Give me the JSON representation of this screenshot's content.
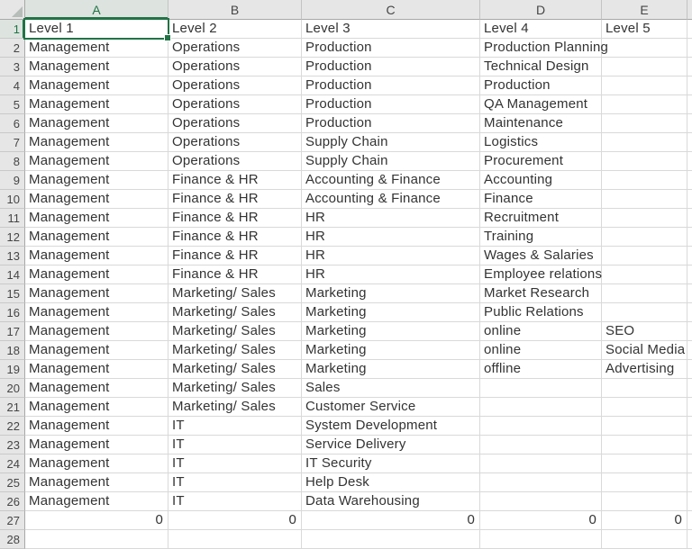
{
  "sheet": {
    "columns": [
      "A",
      "B",
      "C",
      "D",
      "E"
    ],
    "selection": {
      "cell": "A1",
      "column": "A",
      "row": "1",
      "value": "Level 1"
    },
    "accent_color": "#217346",
    "rows": [
      {
        "n": "1",
        "cells": [
          "Level 1",
          "Level 2",
          "Level 3",
          "Level 4",
          "Level 5"
        ]
      },
      {
        "n": "2",
        "cells": [
          "Management",
          "Operations",
          "Production",
          "Production Planning",
          ""
        ]
      },
      {
        "n": "3",
        "cells": [
          "Management",
          "Operations",
          "Production",
          "Technical Design",
          ""
        ]
      },
      {
        "n": "4",
        "cells": [
          "Management",
          "Operations",
          "Production",
          "Production",
          ""
        ]
      },
      {
        "n": "5",
        "cells": [
          "Management",
          "Operations",
          "Production",
          "QA Management",
          ""
        ]
      },
      {
        "n": "6",
        "cells": [
          "Management",
          "Operations",
          "Production",
          "Maintenance",
          ""
        ]
      },
      {
        "n": "7",
        "cells": [
          "Management",
          "Operations",
          "Supply Chain",
          "Logistics",
          ""
        ]
      },
      {
        "n": "8",
        "cells": [
          "Management",
          "Operations",
          "Supply Chain",
          "Procurement",
          ""
        ]
      },
      {
        "n": "9",
        "cells": [
          "Management",
          "Finance & HR",
          "Accounting & Finance",
          "Accounting",
          ""
        ]
      },
      {
        "n": "10",
        "cells": [
          "Management",
          "Finance & HR",
          "Accounting & Finance",
          "Finance",
          ""
        ]
      },
      {
        "n": "11",
        "cells": [
          "Management",
          "Finance & HR",
          "HR",
          "Recruitment",
          ""
        ]
      },
      {
        "n": "12",
        "cells": [
          "Management",
          "Finance & HR",
          "HR",
          "Training",
          ""
        ]
      },
      {
        "n": "13",
        "cells": [
          "Management",
          "Finance & HR",
          "HR",
          "Wages & Salaries",
          ""
        ]
      },
      {
        "n": "14",
        "cells": [
          "Management",
          "Finance & HR",
          "HR",
          "Employee relations",
          ""
        ]
      },
      {
        "n": "15",
        "cells": [
          "Management",
          "Marketing/ Sales",
          "Marketing",
          "Market Research",
          ""
        ]
      },
      {
        "n": "16",
        "cells": [
          "Management",
          "Marketing/ Sales",
          "Marketing",
          "Public Relations",
          ""
        ]
      },
      {
        "n": "17",
        "cells": [
          "Management",
          "Marketing/ Sales",
          "Marketing",
          "online",
          "SEO"
        ]
      },
      {
        "n": "18",
        "cells": [
          "Management",
          "Marketing/ Sales",
          "Marketing",
          "online",
          "Social Media"
        ]
      },
      {
        "n": "19",
        "cells": [
          "Management",
          "Marketing/ Sales",
          "Marketing",
          "offline",
          "Advertising"
        ]
      },
      {
        "n": "20",
        "cells": [
          "Management",
          "Marketing/ Sales",
          "Sales",
          "",
          ""
        ]
      },
      {
        "n": "21",
        "cells": [
          "Management",
          "Marketing/ Sales",
          "Customer Service",
          "",
          ""
        ]
      },
      {
        "n": "22",
        "cells": [
          "Management",
          "IT",
          "System Development",
          "",
          ""
        ]
      },
      {
        "n": "23",
        "cells": [
          "Management",
          "IT",
          "Service Delivery",
          "",
          ""
        ]
      },
      {
        "n": "24",
        "cells": [
          "Management",
          "IT",
          "IT Security",
          "",
          ""
        ]
      },
      {
        "n": "25",
        "cells": [
          "Management",
          "IT",
          "Help Desk",
          "",
          ""
        ]
      },
      {
        "n": "26",
        "cells": [
          "Management",
          "IT",
          "Data Warehousing",
          "",
          ""
        ]
      },
      {
        "n": "27",
        "cells": [
          "0",
          "0",
          "0",
          "0",
          "0"
        ],
        "numeric": true
      },
      {
        "n": "28",
        "cells": [
          "",
          "",
          "",
          "",
          ""
        ]
      }
    ]
  }
}
